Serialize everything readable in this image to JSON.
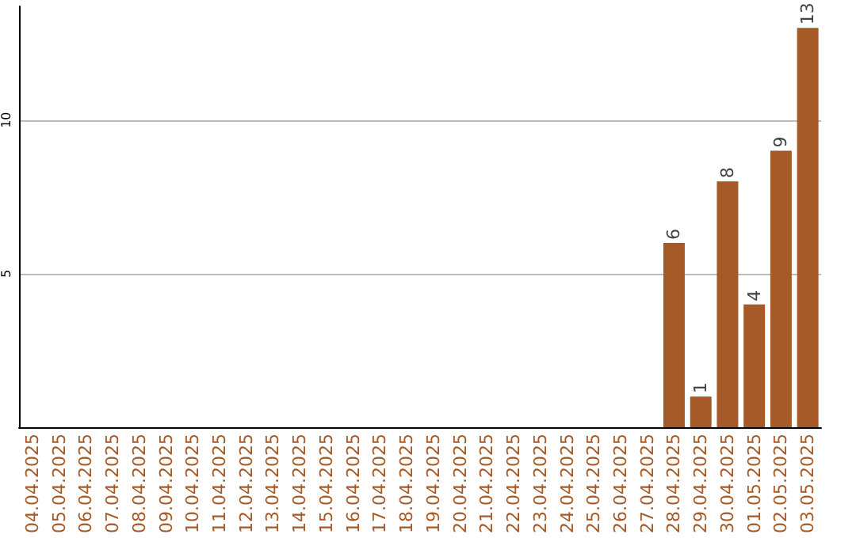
{
  "chart_data": {
    "type": "bar",
    "categories": [
      "04.04.2025",
      "05.04.2025",
      "06.04.2025",
      "07.04.2025",
      "08.04.2025",
      "09.04.2025",
      "10.04.2025",
      "11.04.2025",
      "12.04.2025",
      "13.04.2025",
      "14.04.2025",
      "15.04.2025",
      "16.04.2025",
      "17.04.2025",
      "18.04.2025",
      "19.04.2025",
      "20.04.2025",
      "21.04.2025",
      "22.04.2025",
      "23.04.2025",
      "24.04.2025",
      "25.04.2025",
      "26.04.2025",
      "27.04.2025",
      "28.04.2025",
      "29.04.2025",
      "30.04.2025",
      "01.05.2025",
      "02.05.2025",
      "03.05.2025"
    ],
    "values": [
      0,
      0,
      0,
      0,
      0,
      0,
      0,
      0,
      0,
      0,
      0,
      0,
      0,
      0,
      0,
      0,
      0,
      0,
      0,
      0,
      0,
      0,
      0,
      0,
      6,
      1,
      8,
      4,
      9,
      13
    ],
    "value_labels": [
      null,
      null,
      null,
      null,
      null,
      null,
      null,
      null,
      null,
      null,
      null,
      null,
      null,
      null,
      null,
      null,
      null,
      null,
      null,
      null,
      null,
      null,
      null,
      null,
      "6",
      "1",
      "8",
      "4",
      "9",
      "13"
    ],
    "color": "#a65a28",
    "ylim": [
      0,
      13.7
    ],
    "yticks": [
      5,
      10
    ],
    "grid": "y"
  }
}
